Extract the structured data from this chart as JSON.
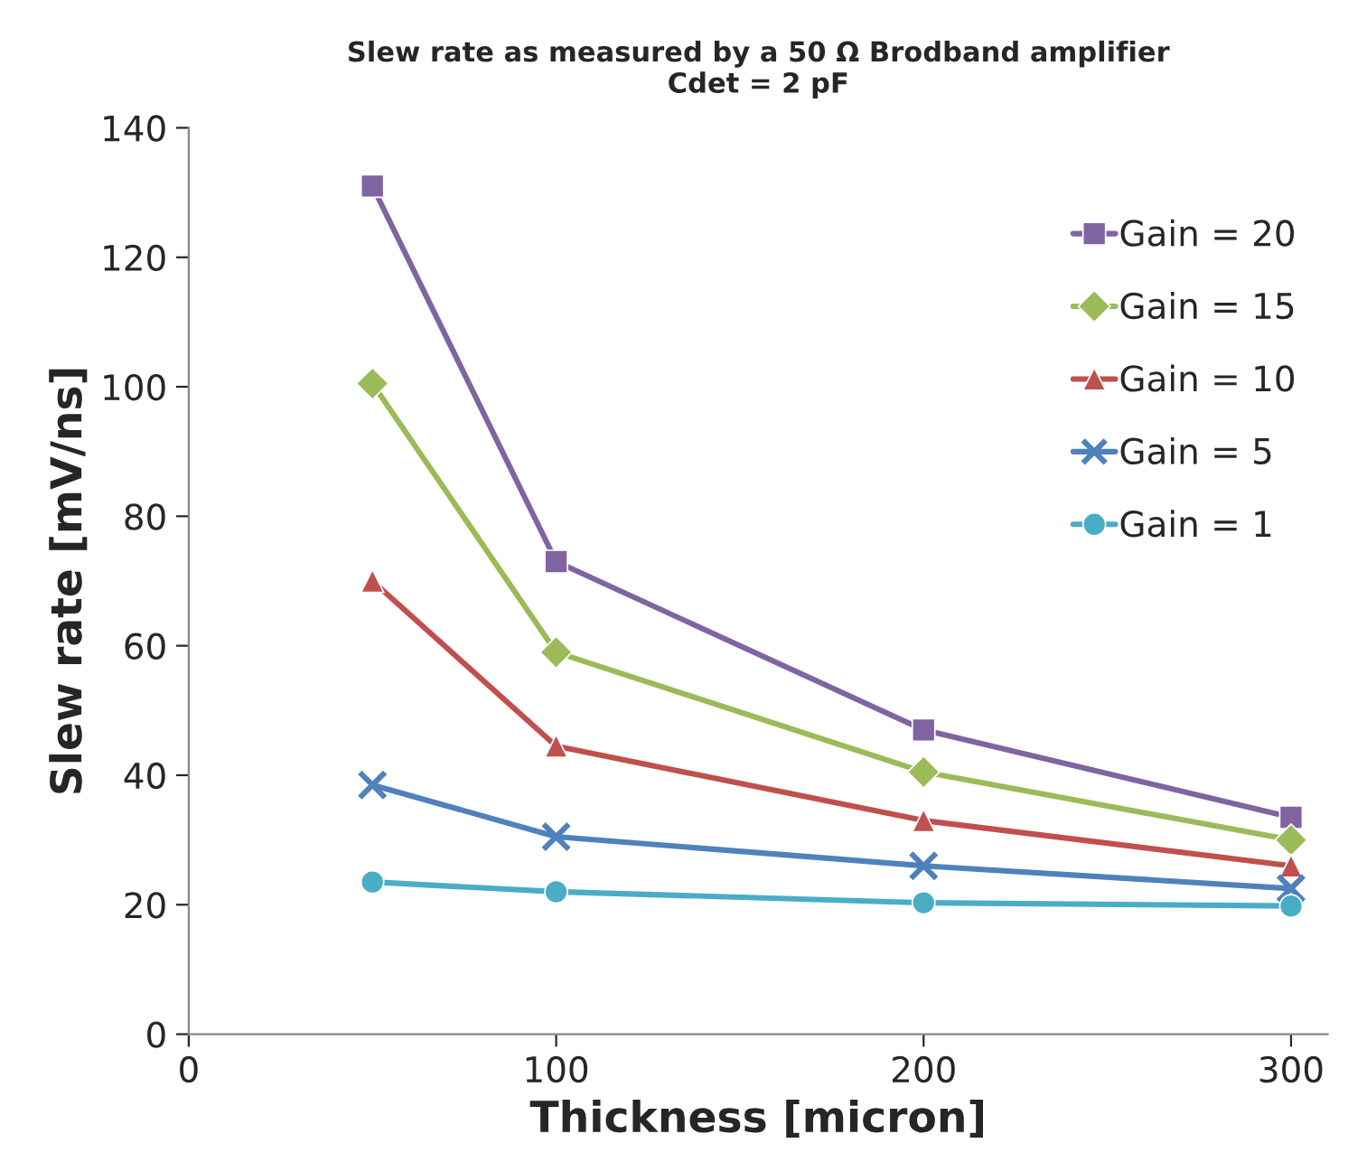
{
  "chart_data": {
    "type": "line",
    "title": "Slew rate as measured by a 50 Ω Brodband amplifier\nCdet = 2 pF",
    "xlabel": "Thickness [micron]",
    "ylabel": "Slew rate [mV/ns]",
    "x": [
      50,
      100,
      200,
      300
    ],
    "series": [
      {
        "name": "Gain = 20",
        "color": "#8064a2",
        "marker": "square",
        "values": [
          131,
          73,
          47,
          33.5
        ]
      },
      {
        "name": "Gain = 15",
        "color": "#9bbb59",
        "marker": "diamond",
        "values": [
          100.5,
          59,
          40.5,
          30
        ]
      },
      {
        "name": "Gain = 10",
        "color": "#c0504d",
        "marker": "triangle",
        "values": [
          70,
          44.5,
          33,
          26
        ]
      },
      {
        "name": "Gain = 5",
        "color": "#4f81bd",
        "marker": "cross",
        "values": [
          38.5,
          30.5,
          26,
          22.5
        ]
      },
      {
        "name": "Gain = 1",
        "color": "#4bacc6",
        "marker": "circle",
        "values": [
          23.5,
          22,
          20.3,
          19.8
        ]
      }
    ],
    "xlim": [
      0,
      310
    ],
    "xticks": [
      0,
      100,
      200,
      300
    ],
    "ylim": [
      0,
      140
    ],
    "yticks": [
      0,
      20,
      40,
      60,
      80,
      100,
      120,
      140
    ],
    "grid": false,
    "legend": "right"
  }
}
